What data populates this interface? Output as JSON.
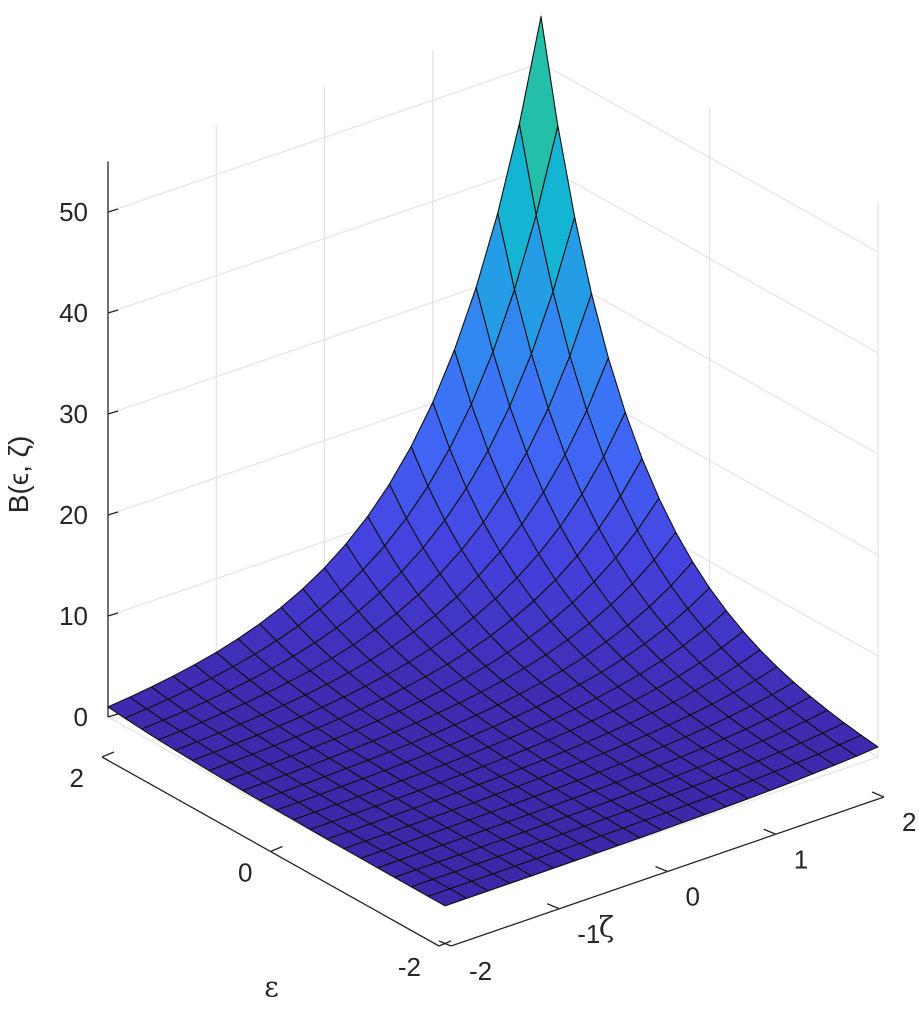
{
  "chart_data": {
    "type": "surface3d",
    "xlabel": "ε",
    "ylabel": "ζ",
    "zlabel": "B(ϵ, ζ)",
    "xlim": [
      -2,
      2
    ],
    "ylim": [
      -2,
      2
    ],
    "zlim": [
      0,
      55
    ],
    "x_ticks": [
      -2,
      0,
      2
    ],
    "y_ticks": [
      -2,
      -1,
      0,
      1,
      2
    ],
    "z_ticks": [
      0,
      10,
      20,
      30,
      40,
      50
    ],
    "x_tick_labels": [
      "-2",
      "0",
      "2"
    ],
    "y_tick_labels": [
      "-2",
      "-1",
      "0",
      "1",
      "2"
    ],
    "z_tick_labels": [
      "0",
      "10",
      "20",
      "30",
      "40",
      "50"
    ],
    "grid": true,
    "colormap": "winter-like (indigo to green)",
    "colormap_colors": [
      "#3e26a8",
      "#4543e0",
      "#3f6cf8",
      "#2c91ed",
      "#13b4d5",
      "#25c0a5",
      "#66cc5e"
    ],
    "mesh_resolution": 21,
    "function": "B = exp(ε + ζ)",
    "surface_samples": [
      {
        "epsilon": -2,
        "zeta": -2,
        "B": 0.02
      },
      {
        "epsilon": 2,
        "zeta": -2,
        "B": 1.0
      },
      {
        "epsilon": -2,
        "zeta": 2,
        "B": 1.0
      },
      {
        "epsilon": 0,
        "zeta": 0,
        "B": 1.0
      },
      {
        "epsilon": 1,
        "zeta": 1,
        "B": 7.39
      },
      {
        "epsilon": 2,
        "zeta": 1,
        "B": 20.09
      },
      {
        "epsilon": 1.5,
        "zeta": 1.5,
        "B": 20.09
      },
      {
        "epsilon": 2,
        "zeta": 2,
        "B": 54.6
      }
    ]
  }
}
